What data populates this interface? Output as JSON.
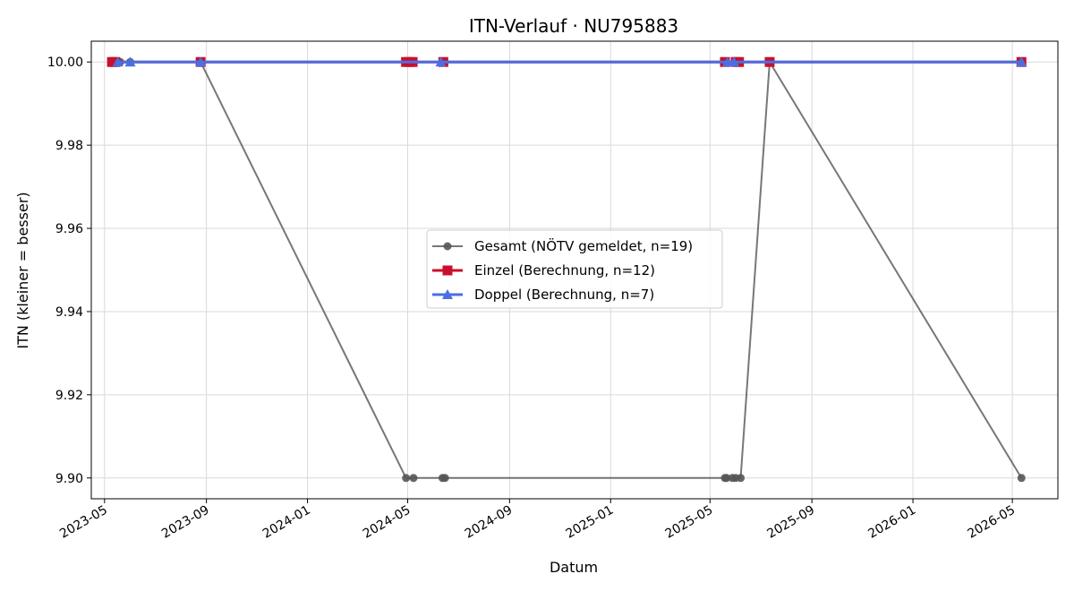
{
  "chart_data": {
    "type": "line",
    "title": "ITN-Verlauf · NU795883",
    "xlabel": "Datum",
    "ylabel": "ITN  (kleiner = besser)",
    "ylim": [
      9.895,
      10.005
    ],
    "xlim": [
      "2023-04-15",
      "2026-06-25"
    ],
    "yticks": [
      9.9,
      9.92,
      9.94,
      9.96,
      9.98,
      10.0
    ],
    "ytick_labels": [
      "9.90",
      "9.92",
      "9.94",
      "9.96",
      "9.98",
      "10.00"
    ],
    "xticks": [
      "2023-05-01",
      "2023-09-01",
      "2024-01-01",
      "2024-05-01",
      "2024-09-01",
      "2025-01-01",
      "2025-05-01",
      "2025-09-01",
      "2026-01-01",
      "2026-05-01"
    ],
    "xtick_labels": [
      "2023-05",
      "2023-09",
      "2024-01",
      "2024-05",
      "2024-09",
      "2025-01",
      "2025-05",
      "2025-09",
      "2026-01",
      "2026-05"
    ],
    "grid": true,
    "legend_position": "center",
    "series": [
      {
        "name": "Gesamt (NÖTV gemeldet, n=19)",
        "color": "#555555",
        "marker": "circle",
        "points": [
          [
            "2023-05-17",
            10.0
          ],
          [
            "2023-05-20",
            10.0
          ],
          [
            "2023-06-01",
            10.0
          ],
          [
            "2023-08-25",
            10.0
          ],
          [
            "2024-04-29",
            9.9
          ],
          [
            "2024-05-08",
            9.9
          ],
          [
            "2024-06-12",
            9.9
          ],
          [
            "2024-06-15",
            9.9
          ],
          [
            "2025-05-19",
            9.9
          ],
          [
            "2025-05-21",
            9.9
          ],
          [
            "2025-05-28",
            9.9
          ],
          [
            "2025-06-01",
            9.9
          ],
          [
            "2025-06-07",
            9.9
          ],
          [
            "2025-07-12",
            10.0
          ],
          [
            "2026-05-12",
            9.9
          ]
        ]
      },
      {
        "name": "Einzel (Berechnung, n=12)",
        "color": "#c8102e",
        "marker": "square",
        "points": [
          [
            "2023-05-10",
            10.0
          ],
          [
            "2023-05-14",
            10.0
          ],
          [
            "2023-08-25",
            10.0
          ],
          [
            "2024-04-29",
            10.0
          ],
          [
            "2024-05-03",
            10.0
          ],
          [
            "2024-05-07",
            10.0
          ],
          [
            "2024-06-13",
            10.0
          ],
          [
            "2025-05-19",
            10.0
          ],
          [
            "2025-06-01",
            10.0
          ],
          [
            "2025-06-05",
            10.0
          ],
          [
            "2025-07-12",
            10.0
          ],
          [
            "2026-05-12",
            10.0
          ]
        ]
      },
      {
        "name": "Doppel (Berechnung, n=7)",
        "color": "#4a6fe3",
        "marker": "triangle",
        "points": [
          [
            "2023-05-17",
            10.0
          ],
          [
            "2023-06-01",
            10.0
          ],
          [
            "2023-08-25",
            10.0
          ],
          [
            "2024-06-10",
            10.0
          ],
          [
            "2025-05-22",
            10.0
          ],
          [
            "2025-05-30",
            10.0
          ],
          [
            "2026-05-12",
            10.0
          ]
        ]
      }
    ]
  }
}
